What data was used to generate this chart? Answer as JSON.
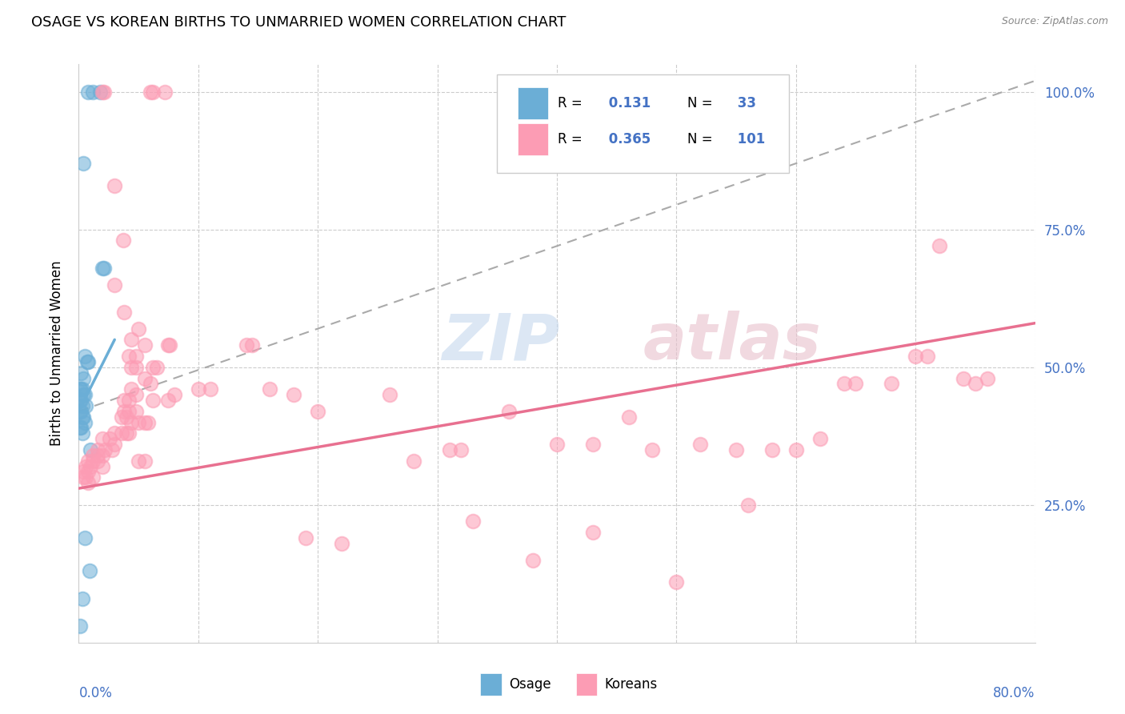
{
  "title": "OSAGE VS KOREAN BIRTHS TO UNMARRIED WOMEN CORRELATION CHART",
  "source": "Source: ZipAtlas.com",
  "ylabel": "Births to Unmarried Women",
  "xmin": 0.0,
  "xmax": 0.8,
  "ymin": 0.0,
  "ymax": 1.05,
  "background_color": "#ffffff",
  "watermark_zip": "ZIP",
  "watermark_atlas": "atlas",
  "osage_color": "#6baed6",
  "korean_color": "#fc9cb4",
  "osage_R": 0.131,
  "osage_N": 33,
  "korean_R": 0.365,
  "korean_N": 101,
  "osage_line": [
    0.0,
    0.42,
    0.03,
    0.55
  ],
  "korean_line": [
    0.0,
    0.28,
    0.8,
    0.58
  ],
  "dashed_line": [
    0.0,
    0.42,
    0.8,
    1.02
  ],
  "osage_points": [
    [
      0.008,
      1.0
    ],
    [
      0.012,
      1.0
    ],
    [
      0.018,
      1.0
    ],
    [
      0.004,
      0.87
    ],
    [
      0.02,
      0.68
    ],
    [
      0.021,
      0.68
    ],
    [
      0.005,
      0.52
    ],
    [
      0.007,
      0.51
    ],
    [
      0.008,
      0.51
    ],
    [
      0.002,
      0.49
    ],
    [
      0.004,
      0.48
    ],
    [
      0.001,
      0.46
    ],
    [
      0.002,
      0.46
    ],
    [
      0.003,
      0.46
    ],
    [
      0.004,
      0.45
    ],
    [
      0.005,
      0.45
    ],
    [
      0.001,
      0.44
    ],
    [
      0.002,
      0.44
    ],
    [
      0.003,
      0.43
    ],
    [
      0.006,
      0.43
    ],
    [
      0.001,
      0.42
    ],
    [
      0.002,
      0.42
    ],
    [
      0.003,
      0.41
    ],
    [
      0.004,
      0.41
    ],
    [
      0.005,
      0.4
    ],
    [
      0.001,
      0.39
    ],
    [
      0.002,
      0.39
    ],
    [
      0.003,
      0.38
    ],
    [
      0.01,
      0.35
    ],
    [
      0.005,
      0.19
    ],
    [
      0.009,
      0.13
    ],
    [
      0.003,
      0.08
    ],
    [
      0.001,
      0.03
    ]
  ],
  "korean_points": [
    [
      0.02,
      1.0
    ],
    [
      0.021,
      1.0
    ],
    [
      0.06,
      1.0
    ],
    [
      0.062,
      1.0
    ],
    [
      0.072,
      1.0
    ],
    [
      0.03,
      0.83
    ],
    [
      0.037,
      0.73
    ],
    [
      0.03,
      0.65
    ],
    [
      0.038,
      0.6
    ],
    [
      0.05,
      0.57
    ],
    [
      0.044,
      0.55
    ],
    [
      0.055,
      0.54
    ],
    [
      0.075,
      0.54
    ],
    [
      0.076,
      0.54
    ],
    [
      0.042,
      0.52
    ],
    [
      0.048,
      0.52
    ],
    [
      0.044,
      0.5
    ],
    [
      0.048,
      0.5
    ],
    [
      0.062,
      0.5
    ],
    [
      0.065,
      0.5
    ],
    [
      0.055,
      0.48
    ],
    [
      0.06,
      0.47
    ],
    [
      0.044,
      0.46
    ],
    [
      0.048,
      0.45
    ],
    [
      0.038,
      0.44
    ],
    [
      0.042,
      0.44
    ],
    [
      0.062,
      0.44
    ],
    [
      0.075,
      0.44
    ],
    [
      0.038,
      0.42
    ],
    [
      0.042,
      0.42
    ],
    [
      0.048,
      0.42
    ],
    [
      0.036,
      0.41
    ],
    [
      0.04,
      0.41
    ],
    [
      0.044,
      0.4
    ],
    [
      0.05,
      0.4
    ],
    [
      0.055,
      0.4
    ],
    [
      0.058,
      0.4
    ],
    [
      0.03,
      0.38
    ],
    [
      0.036,
      0.38
    ],
    [
      0.04,
      0.38
    ],
    [
      0.042,
      0.38
    ],
    [
      0.02,
      0.37
    ],
    [
      0.026,
      0.37
    ],
    [
      0.03,
      0.36
    ],
    [
      0.016,
      0.35
    ],
    [
      0.022,
      0.35
    ],
    [
      0.028,
      0.35
    ],
    [
      0.012,
      0.34
    ],
    [
      0.016,
      0.34
    ],
    [
      0.02,
      0.34
    ],
    [
      0.008,
      0.33
    ],
    [
      0.012,
      0.33
    ],
    [
      0.016,
      0.33
    ],
    [
      0.02,
      0.32
    ],
    [
      0.006,
      0.32
    ],
    [
      0.01,
      0.32
    ],
    [
      0.004,
      0.31
    ],
    [
      0.008,
      0.31
    ],
    [
      0.012,
      0.3
    ],
    [
      0.004,
      0.3
    ],
    [
      0.006,
      0.3
    ],
    [
      0.008,
      0.29
    ],
    [
      0.05,
      0.33
    ],
    [
      0.055,
      0.33
    ],
    [
      0.08,
      0.45
    ],
    [
      0.1,
      0.46
    ],
    [
      0.11,
      0.46
    ],
    [
      0.14,
      0.54
    ],
    [
      0.145,
      0.54
    ],
    [
      0.16,
      0.46
    ],
    [
      0.18,
      0.45
    ],
    [
      0.2,
      0.42
    ],
    [
      0.26,
      0.45
    ],
    [
      0.28,
      0.33
    ],
    [
      0.31,
      0.35
    ],
    [
      0.32,
      0.35
    ],
    [
      0.36,
      0.42
    ],
    [
      0.4,
      0.36
    ],
    [
      0.43,
      0.36
    ],
    [
      0.46,
      0.41
    ],
    [
      0.48,
      0.35
    ],
    [
      0.52,
      0.36
    ],
    [
      0.55,
      0.35
    ],
    [
      0.56,
      0.25
    ],
    [
      0.58,
      0.35
    ],
    [
      0.6,
      0.35
    ],
    [
      0.62,
      0.37
    ],
    [
      0.64,
      0.47
    ],
    [
      0.65,
      0.47
    ],
    [
      0.68,
      0.47
    ],
    [
      0.7,
      0.52
    ],
    [
      0.71,
      0.52
    ],
    [
      0.72,
      0.72
    ],
    [
      0.74,
      0.48
    ],
    [
      0.75,
      0.47
    ],
    [
      0.76,
      0.48
    ],
    [
      0.19,
      0.19
    ],
    [
      0.22,
      0.18
    ],
    [
      0.33,
      0.22
    ],
    [
      0.38,
      0.15
    ],
    [
      0.43,
      0.2
    ],
    [
      0.5,
      0.11
    ]
  ]
}
